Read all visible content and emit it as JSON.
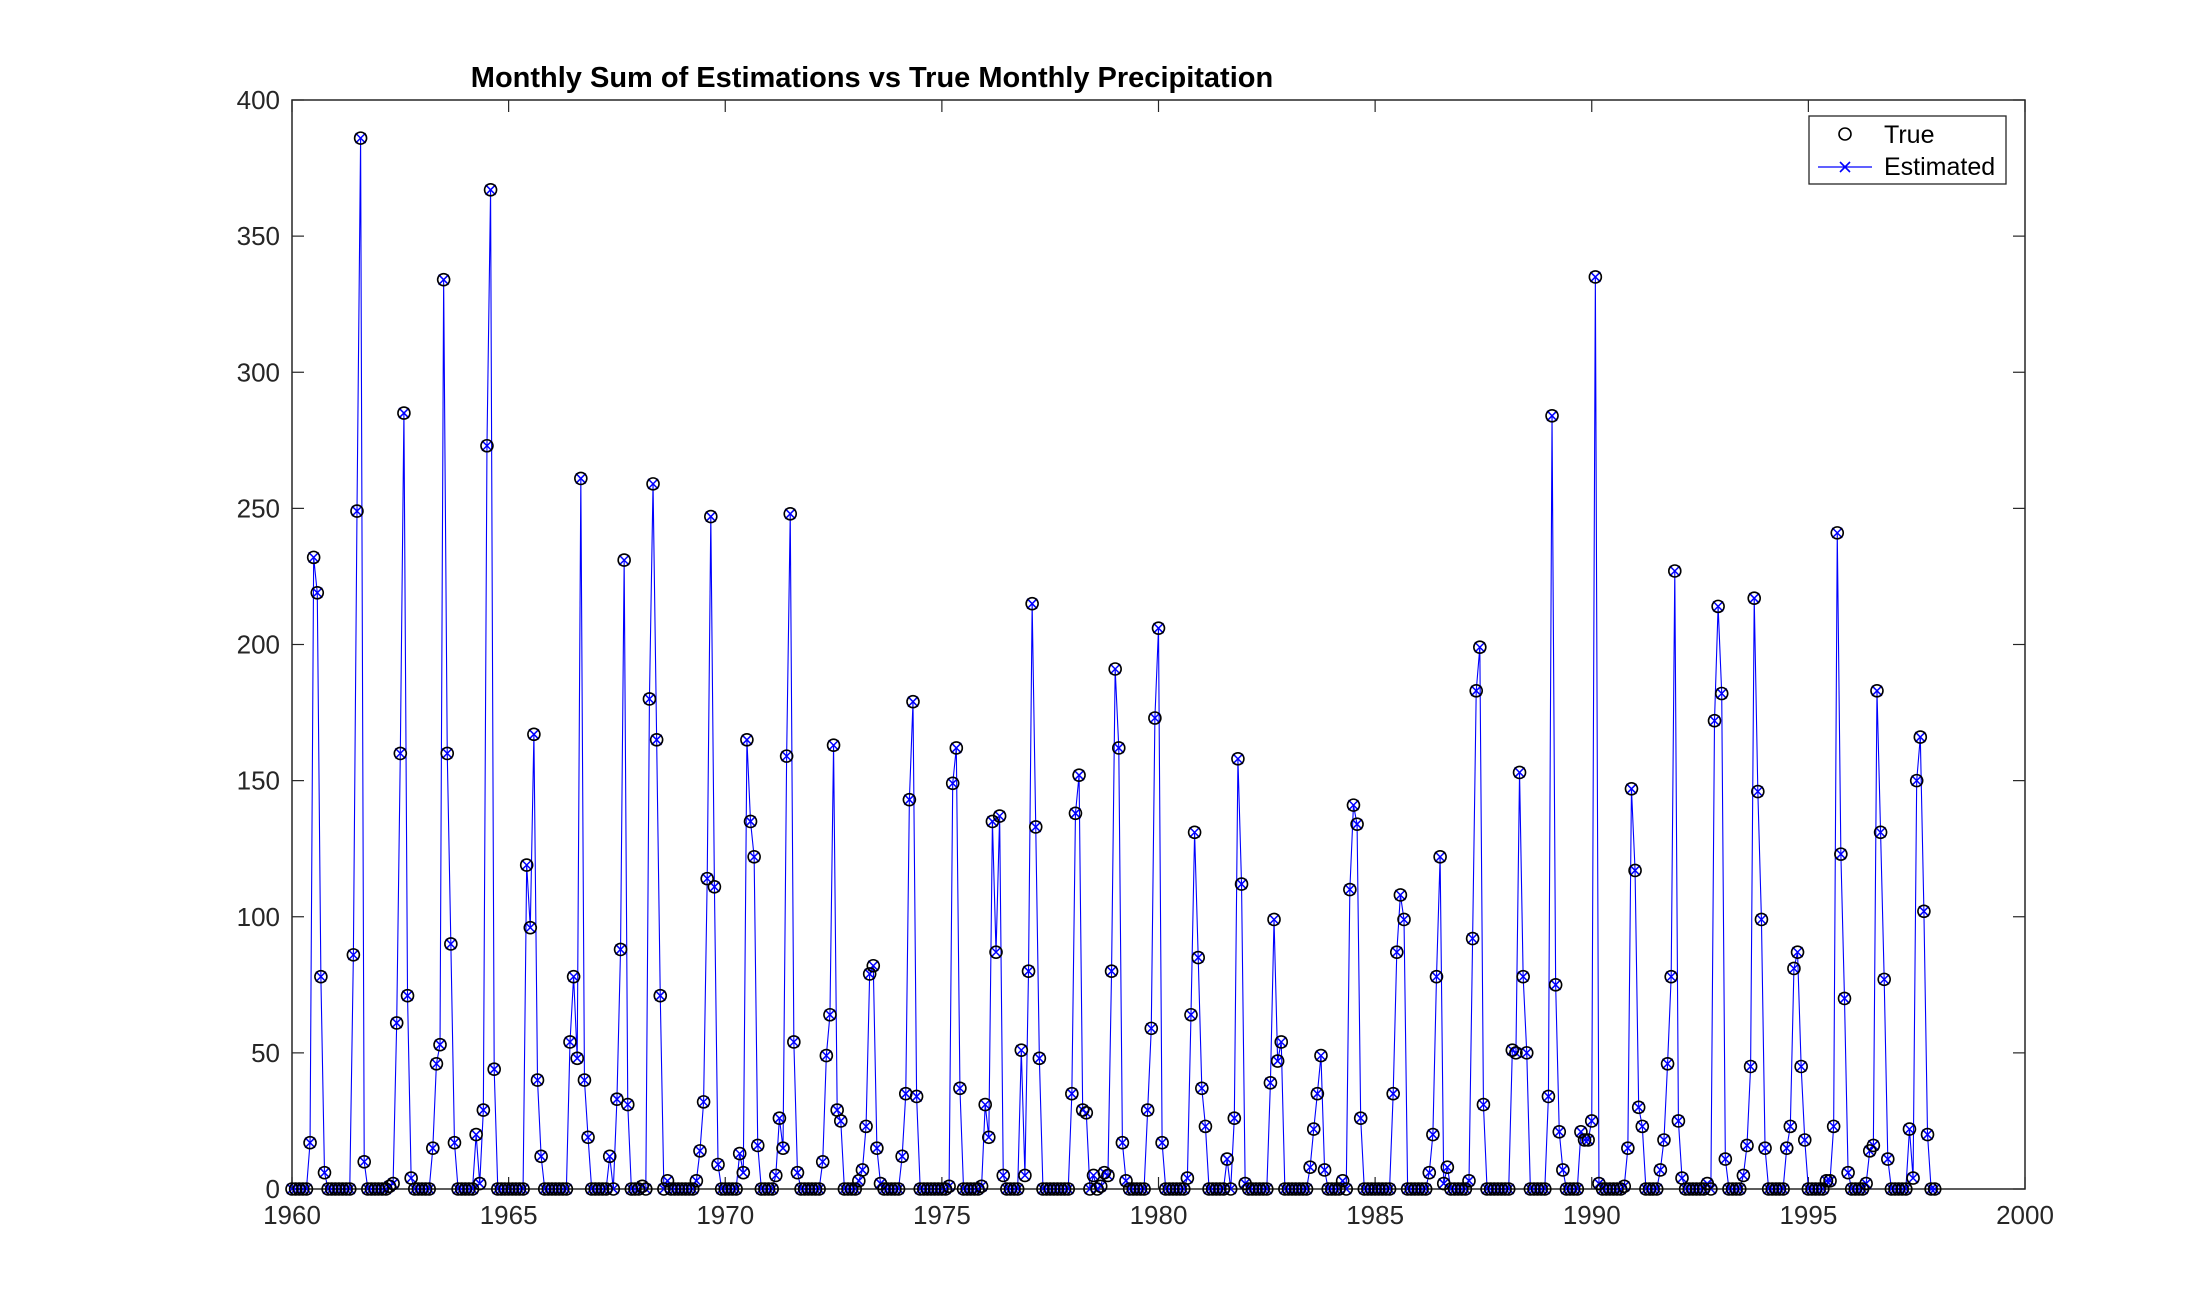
{
  "chart_data": {
    "type": "line",
    "title": "Monthly Sum of Estimations vs True Monthly Precipitation",
    "xlabel": "",
    "ylabel": "",
    "xlim": [
      1960,
      2000
    ],
    "ylim": [
      0,
      400
    ],
    "x_ticks": [
      1960,
      1965,
      1970,
      1975,
      1980,
      1985,
      1990,
      1995,
      2000
    ],
    "y_ticks": [
      0,
      50,
      100,
      150,
      200,
      250,
      300,
      350,
      400
    ],
    "grid": false,
    "legend_position": "top-right",
    "x_start": 1960,
    "x_step_years": 0.0833333,
    "series": [
      {
        "name": "True",
        "marker": "circle",
        "line": "none",
        "color": "#000000",
        "values": [
          0,
          0,
          0,
          0,
          0,
          17,
          232,
          219,
          78,
          6,
          0,
          0,
          0,
          0,
          0,
          0,
          0,
          86,
          249,
          386,
          10,
          0,
          0,
          0,
          0,
          0,
          0,
          1,
          2,
          61,
          160,
          285,
          71,
          4,
          0,
          0,
          0,
          0,
          0,
          15,
          46,
          53,
          334,
          160,
          90,
          17,
          0,
          0,
          0,
          0,
          0,
          20,
          2,
          29,
          273,
          367,
          44,
          0,
          0,
          0,
          0,
          0,
          0,
          0,
          0,
          119,
          96,
          167,
          40,
          12,
          0,
          0,
          0,
          0,
          0,
          0,
          0,
          54,
          78,
          48,
          261,
          40,
          19,
          0,
          0,
          0,
          0,
          0,
          12,
          0,
          33,
          88,
          231,
          31,
          0,
          0,
          0,
          1,
          0,
          180,
          259,
          165,
          71,
          0,
          3,
          0,
          0,
          0,
          0,
          0,
          0,
          0,
          3,
          14,
          32,
          114,
          247,
          111,
          9,
          0,
          0,
          0,
          0,
          0,
          13,
          6,
          165,
          135,
          122,
          16,
          0,
          0,
          0,
          0,
          5,
          26,
          15,
          159,
          248,
          54,
          6,
          0,
          0,
          0,
          0,
          0,
          0,
          10,
          49,
          64,
          163,
          29,
          25,
          0,
          0,
          0,
          0,
          3,
          7,
          23,
          79,
          82,
          15,
          2,
          0,
          0,
          0,
          0,
          0,
          12,
          35,
          143,
          179,
          34,
          0,
          0,
          0,
          0,
          0,
          0,
          0,
          0,
          1,
          149,
          162,
          37,
          0,
          0,
          0,
          0,
          0,
          1,
          31,
          19,
          135,
          87,
          137,
          5,
          0,
          0,
          0,
          0,
          51,
          5,
          80,
          215,
          133,
          48,
          0,
          0,
          0,
          0,
          0,
          0,
          0,
          0,
          35,
          138,
          152,
          29,
          28,
          0,
          5,
          0,
          1,
          6,
          5,
          80,
          191,
          162,
          17,
          3,
          0,
          0,
          0,
          0,
          0,
          29,
          59,
          173,
          206,
          17,
          0,
          0,
          0,
          0,
          0,
          0,
          4,
          64,
          131,
          85,
          37,
          23,
          0,
          0,
          0,
          0,
          0,
          11,
          0,
          26,
          158,
          112,
          2,
          0,
          0,
          0,
          0,
          0,
          0,
          39,
          99,
          47,
          54,
          0,
          0,
          0,
          0,
          0,
          0,
          0,
          8,
          22,
          35,
          49,
          7,
          0,
          0,
          0,
          0,
          3,
          0,
          110,
          141,
          134,
          26,
          0,
          0,
          0,
          0,
          0,
          0,
          0,
          0,
          35,
          87,
          108,
          99,
          0,
          0,
          0,
          0,
          0,
          0,
          6,
          20,
          78,
          122,
          2,
          8,
          0,
          0,
          0,
          0,
          0,
          3,
          92,
          183,
          199,
          31,
          0,
          0,
          0,
          0,
          0,
          0,
          0,
          51,
          50,
          153,
          78,
          50,
          0,
          0,
          0,
          0,
          0,
          34,
          284,
          75,
          21,
          7,
          0,
          0,
          0,
          0,
          21,
          18,
          18,
          25,
          335,
          2,
          0,
          0,
          0,
          0,
          0,
          0,
          1,
          15,
          147,
          117,
          30,
          23,
          0,
          0,
          0,
          0,
          7,
          18,
          46,
          78,
          227,
          25,
          4,
          0,
          0,
          0,
          0,
          0,
          0,
          2,
          0,
          172,
          214,
          182,
          11,
          0,
          0,
          0,
          0,
          5,
          16,
          45,
          217,
          146,
          99,
          15,
          0,
          0,
          0,
          0,
          0,
          15,
          23,
          81,
          87,
          45,
          18,
          0,
          0,
          0,
          0,
          0,
          3,
          3,
          23,
          241,
          123,
          70,
          6,
          0,
          0,
          0,
          0,
          2,
          14,
          16,
          183,
          131,
          77,
          11,
          0,
          0,
          0,
          0,
          0,
          22,
          4,
          150,
          166,
          102,
          20,
          0,
          0
        ]
      },
      {
        "name": "Estimated",
        "marker": "x",
        "line": "solid",
        "color": "#0000ff",
        "values": [
          0,
          0,
          0,
          0,
          0,
          17,
          232,
          219,
          78,
          6,
          0,
          0,
          0,
          0,
          0,
          0,
          0,
          86,
          249,
          386,
          10,
          0,
          0,
          0,
          0,
          0,
          0,
          1,
          2,
          61,
          160,
          285,
          71,
          4,
          0,
          0,
          0,
          0,
          0,
          15,
          46,
          53,
          334,
          160,
          90,
          17,
          0,
          0,
          0,
          0,
          0,
          20,
          2,
          29,
          273,
          367,
          44,
          0,
          0,
          0,
          0,
          0,
          0,
          0,
          0,
          119,
          96,
          167,
          40,
          12,
          0,
          0,
          0,
          0,
          0,
          0,
          0,
          54,
          78,
          48,
          261,
          40,
          19,
          0,
          0,
          0,
          0,
          0,
          12,
          0,
          33,
          88,
          231,
          31,
          0,
          0,
          0,
          1,
          0,
          180,
          259,
          165,
          71,
          0,
          3,
          0,
          0,
          0,
          0,
          0,
          0,
          0,
          3,
          14,
          32,
          114,
          247,
          111,
          9,
          0,
          0,
          0,
          0,
          0,
          13,
          6,
          165,
          135,
          122,
          16,
          0,
          0,
          0,
          0,
          5,
          26,
          15,
          159,
          248,
          54,
          6,
          0,
          0,
          0,
          0,
          0,
          0,
          10,
          49,
          64,
          163,
          29,
          25,
          0,
          0,
          0,
          0,
          3,
          7,
          23,
          79,
          82,
          15,
          2,
          0,
          0,
          0,
          0,
          0,
          12,
          35,
          143,
          179,
          34,
          0,
          0,
          0,
          0,
          0,
          0,
          0,
          0,
          1,
          149,
          162,
          37,
          0,
          0,
          0,
          0,
          0,
          1,
          31,
          19,
          135,
          87,
          137,
          5,
          0,
          0,
          0,
          0,
          51,
          5,
          80,
          215,
          133,
          48,
          0,
          0,
          0,
          0,
          0,
          0,
          0,
          0,
          35,
          138,
          152,
          29,
          28,
          0,
          5,
          0,
          1,
          6,
          5,
          80,
          191,
          162,
          17,
          3,
          0,
          0,
          0,
          0,
          0,
          29,
          59,
          173,
          206,
          17,
          0,
          0,
          0,
          0,
          0,
          0,
          4,
          64,
          131,
          85,
          37,
          23,
          0,
          0,
          0,
          0,
          0,
          11,
          0,
          26,
          158,
          112,
          2,
          0,
          0,
          0,
          0,
          0,
          0,
          39,
          99,
          47,
          54,
          0,
          0,
          0,
          0,
          0,
          0,
          0,
          8,
          22,
          35,
          49,
          7,
          0,
          0,
          0,
          0,
          3,
          0,
          110,
          141,
          134,
          26,
          0,
          0,
          0,
          0,
          0,
          0,
          0,
          0,
          35,
          87,
          108,
          99,
          0,
          0,
          0,
          0,
          0,
          0,
          6,
          20,
          78,
          122,
          2,
          8,
          0,
          0,
          0,
          0,
          0,
          3,
          92,
          183,
          199,
          31,
          0,
          0,
          0,
          0,
          0,
          0,
          0,
          51,
          50,
          153,
          78,
          50,
          0,
          0,
          0,
          0,
          0,
          34,
          284,
          75,
          21,
          7,
          0,
          0,
          0,
          0,
          21,
          18,
          18,
          25,
          335,
          2,
          0,
          0,
          0,
          0,
          0,
          0,
          1,
          15,
          147,
          117,
          30,
          23,
          0,
          0,
          0,
          0,
          7,
          18,
          46,
          78,
          227,
          25,
          4,
          0,
          0,
          0,
          0,
          0,
          0,
          2,
          0,
          172,
          214,
          182,
          11,
          0,
          0,
          0,
          0,
          5,
          16,
          45,
          217,
          146,
          99,
          15,
          0,
          0,
          0,
          0,
          0,
          15,
          23,
          81,
          87,
          45,
          18,
          0,
          0,
          0,
          0,
          0,
          3,
          3,
          23,
          241,
          123,
          70,
          6,
          0,
          0,
          0,
          0,
          2,
          14,
          16,
          183,
          131,
          77,
          11,
          0,
          0,
          0,
          0,
          0,
          22,
          4,
          150,
          166,
          102,
          20,
          0,
          0
        ]
      }
    ]
  }
}
